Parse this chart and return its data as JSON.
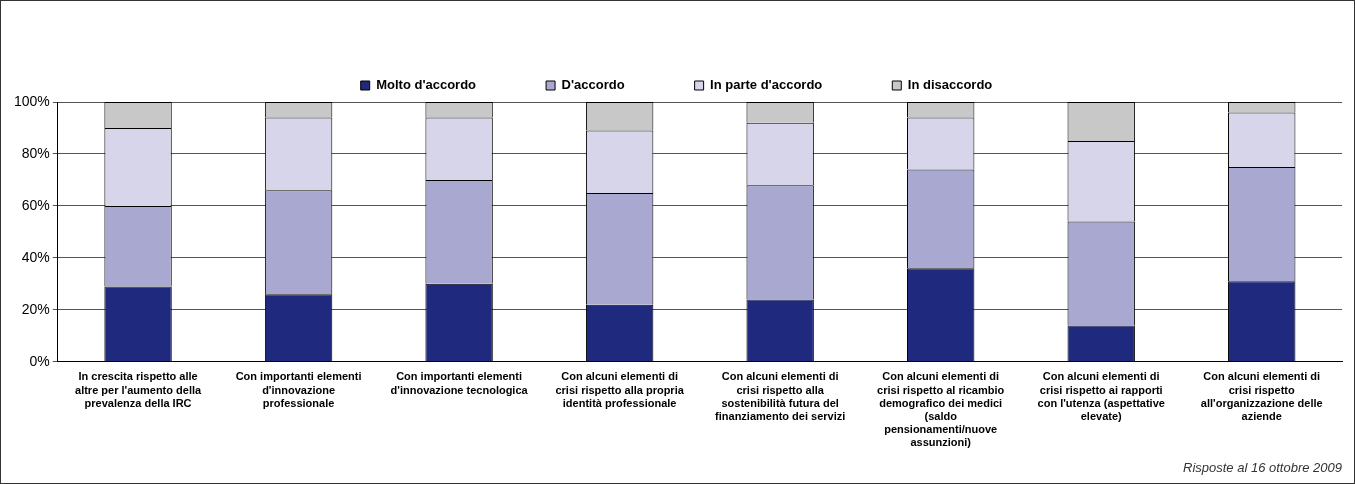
{
  "chart_data": {
    "type": "bar",
    "stacked": true,
    "categories": [
      "In crescita rispetto alle altre per l'aumento della prevalenza della IRC",
      "Con importanti elementi d'innovazione professionale",
      "Con importanti elementi d'innovazione tecnologica",
      "Con alcuni elementi di crisi rispetto alla propria identità professionale",
      "Con alcuni elementi di crisi rispetto alla sostenibilità futura del finanziamento dei servizi",
      "Con alcuni elementi di crisi rispetto al ricambio demografico dei medici (saldo pensionamenti/nuove assunzioni)",
      "Con alcuni elementi di crisi rispetto ai rapporti con l'utenza (aspettative elevate)",
      "Con alcuni elementi di crisi rispetto all'organizzazione delle aziende"
    ],
    "series": [
      {
        "name": "Molto d'accordo",
        "color": "#1f2a7e",
        "values": [
          29,
          26,
          30,
          22,
          24,
          36,
          14,
          31
        ]
      },
      {
        "name": "D'accordo",
        "color": "#a8a8d0",
        "values": [
          31,
          40,
          40,
          43,
          44,
          38,
          40,
          44
        ]
      },
      {
        "name": "In parte d'accordo",
        "color": "#d6d5ea",
        "values": [
          30,
          28,
          24,
          24,
          24,
          20,
          31,
          21
        ]
      },
      {
        "name": "In disaccordo",
        "color": "#c8c8c8",
        "values": [
          10,
          6,
          6,
          11,
          8,
          6,
          15,
          4
        ]
      }
    ],
    "ylim": [
      0,
      100
    ],
    "yticks": [
      {
        "value": 0,
        "label": "0%"
      },
      {
        "value": 20,
        "label": "20%"
      },
      {
        "value": 40,
        "label": "40%"
      },
      {
        "value": 60,
        "label": "60%"
      },
      {
        "value": 80,
        "label": "80%"
      },
      {
        "value": 100,
        "label": "100%"
      }
    ],
    "grid": "y",
    "legend": "top",
    "annotations": [
      "Risposte al 16 ottobre 2009"
    ]
  }
}
